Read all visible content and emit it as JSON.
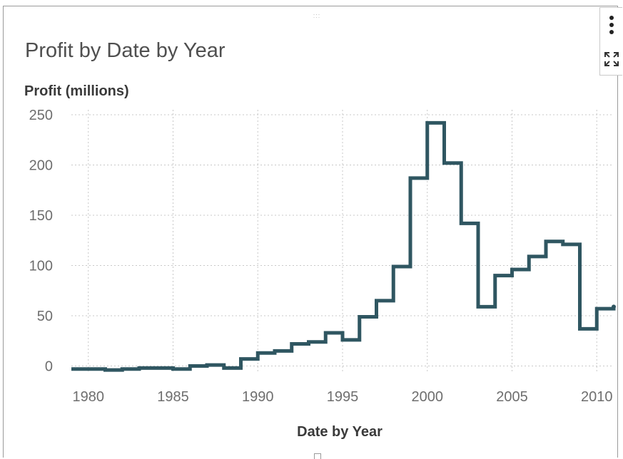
{
  "panel": {
    "title": "Profit by Date by Year",
    "more_icon": "more-vertical-icon",
    "maximize_icon": "maximize-icon",
    "drag_handle_icon": "drag-handle-icon"
  },
  "chart_data": {
    "type": "line",
    "interpolation": "step",
    "title": "Profit by Date by Year",
    "xlabel": "Date by Year",
    "ylabel": "Profit (millions)",
    "xlim": [
      1979,
      2011
    ],
    "ylim": [
      -6,
      255
    ],
    "x_ticks": [
      1980,
      1985,
      1990,
      1995,
      2000,
      2005,
      2010
    ],
    "y_ticks": [
      0,
      50,
      100,
      150,
      200,
      250
    ],
    "grid": true,
    "legend": "none",
    "color": "#2f5661",
    "series": [
      {
        "x": [
          1979,
          1980,
          1981,
          1982,
          1983,
          1984,
          1985,
          1986,
          1987,
          1988,
          1989,
          1990,
          1991,
          1992,
          1993,
          1994,
          1995,
          1996,
          1997,
          1998,
          1999,
          2000,
          2001,
          2002,
          2003,
          2004,
          2005,
          2006,
          2007,
          2008,
          2009,
          2010,
          2011
        ],
        "values": [
          -3,
          -3,
          -4,
          -3,
          -2,
          -2,
          -3,
          0,
          1,
          -2,
          7,
          13,
          15,
          22,
          24,
          33,
          26,
          49,
          65,
          99,
          187,
          242,
          202,
          142,
          59,
          90,
          96,
          109,
          124,
          121,
          37,
          57,
          59
        ]
      }
    ]
  }
}
